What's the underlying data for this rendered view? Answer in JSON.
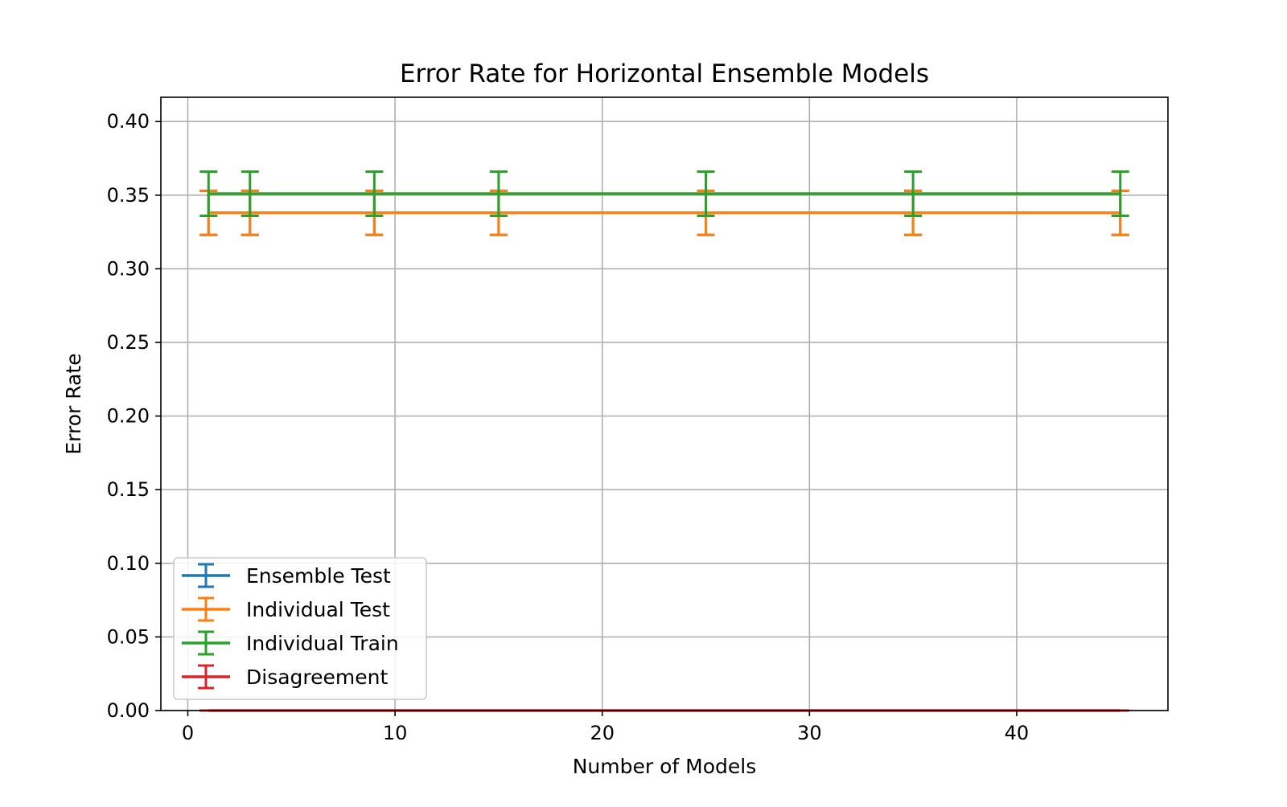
{
  "chart_data": {
    "type": "line",
    "title": "Error Rate for Horizontal Ensemble Models",
    "xlabel": "Number of Models",
    "ylabel": "Error Rate",
    "xlim": [
      -1.3,
      47.3
    ],
    "ylim": [
      0.0,
      0.4165
    ],
    "xticks": [
      0,
      10,
      20,
      30,
      40
    ],
    "xtick_labels": [
      "0",
      "10",
      "20",
      "30",
      "40"
    ],
    "yticks": [
      0.0,
      0.05,
      0.1,
      0.15,
      0.2,
      0.25,
      0.3,
      0.35,
      0.4
    ],
    "ytick_labels": [
      "0.00",
      "0.05",
      "0.10",
      "0.15",
      "0.20",
      "0.25",
      "0.30",
      "0.35",
      "0.40"
    ],
    "grid": true,
    "legend_position": "lower-left",
    "x": [
      1,
      3,
      9,
      15,
      25,
      35,
      45
    ],
    "series": [
      {
        "name": "Ensemble Test",
        "color": "#1f77b4",
        "values": [
          0.338,
          0.338,
          0.338,
          0.338,
          0.338,
          0.338,
          0.338
        ],
        "errors": [
          0.015,
          0.015,
          0.015,
          0.015,
          0.015,
          0.015,
          0.015
        ]
      },
      {
        "name": "Individual Test",
        "color": "#ff7f0e",
        "values": [
          0.338,
          0.338,
          0.338,
          0.338,
          0.338,
          0.338,
          0.338
        ],
        "errors": [
          0.015,
          0.015,
          0.015,
          0.015,
          0.015,
          0.015,
          0.015
        ]
      },
      {
        "name": "Individual Train",
        "color": "#2ca02c",
        "values": [
          0.351,
          0.351,
          0.351,
          0.351,
          0.351,
          0.351,
          0.351
        ],
        "errors": [
          0.015,
          0.015,
          0.015,
          0.015,
          0.015,
          0.015,
          0.015
        ]
      },
      {
        "name": "Disagreement",
        "color": "#d62728",
        "values": [
          0.0,
          0.0,
          0.0,
          0.0,
          0.0,
          0.0,
          0.0
        ],
        "errors": [
          0.0,
          0.0,
          0.0,
          0.0,
          0.0,
          0.0,
          0.0
        ]
      }
    ]
  }
}
